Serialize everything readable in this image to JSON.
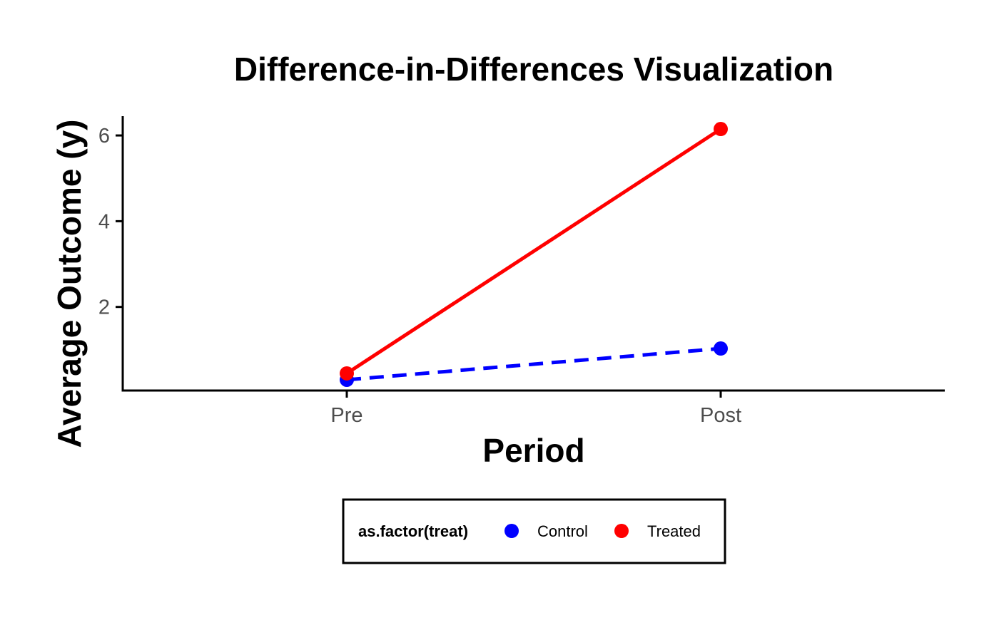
{
  "chart_data": {
    "type": "line",
    "title": "Difference-in-Differences Visualization",
    "xlabel": "Period",
    "ylabel": "Average Outcome (y)",
    "categories": [
      "Pre",
      "Post"
    ],
    "yticks": [
      2,
      4,
      6
    ],
    "ylim": [
      0.05,
      6.45
    ],
    "grid": false,
    "legend": {
      "title": "as.factor(treat)",
      "position": "bottom"
    },
    "series": [
      {
        "name": "Control",
        "values": [
          0.3,
          1.03
        ],
        "color": "#0000ff",
        "line_style": "dashed"
      },
      {
        "name": "Treated",
        "values": [
          0.45,
          6.15
        ],
        "color": "#ff0000",
        "line_style": "solid"
      }
    ]
  }
}
